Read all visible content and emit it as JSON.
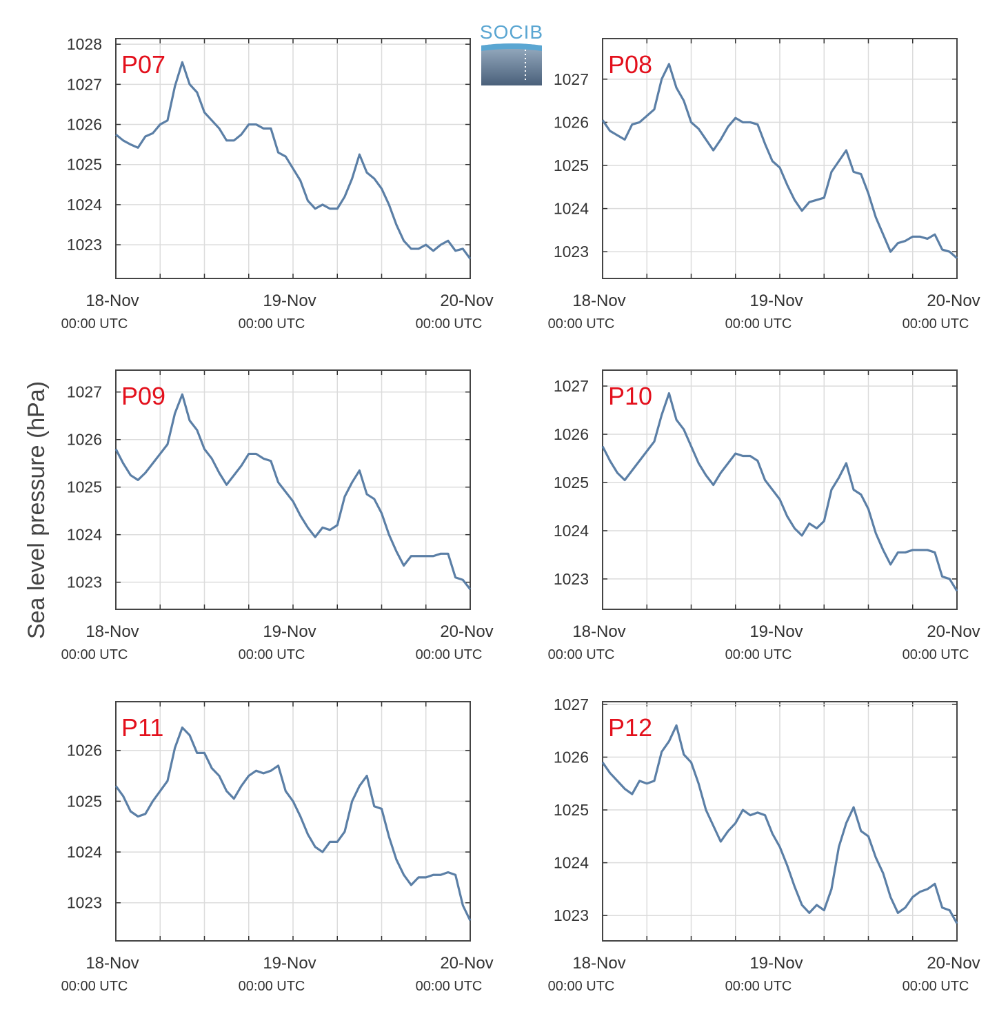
{
  "figure": {
    "ylabel": "Sea level pressure (hPa)",
    "logo": "SOCIB"
  },
  "chart_data": [
    {
      "type": "line",
      "title": "P07",
      "x": [
        0,
        1,
        2,
        3,
        4,
        5,
        6,
        7,
        8,
        9,
        10,
        11,
        12,
        13,
        14,
        15,
        16,
        17,
        18,
        19,
        20,
        21,
        22,
        23,
        24,
        25,
        26,
        27,
        28,
        29,
        30,
        31,
        32,
        33,
        34,
        35,
        36,
        37,
        38,
        39,
        40,
        41,
        42,
        43,
        44,
        45,
        46,
        47,
        48
      ],
      "series": [
        {
          "color": "#5b7fa6",
          "values": [
            1025.75,
            1025.6,
            1025.5,
            1025.42,
            1025.7,
            1025.78,
            1026.0,
            1026.1,
            1026.95,
            1027.55,
            1027.0,
            1026.8,
            1026.3,
            1026.1,
            1025.9,
            1025.6,
            1025.6,
            1025.75,
            1026.0,
            1026.0,
            1025.9,
            1025.9,
            1025.3,
            1025.2,
            1024.9,
            1024.6,
            1024.1,
            1023.9,
            1024.0,
            1023.9,
            1023.9,
            1024.2,
            1024.65,
            1025.25,
            1024.8,
            1024.65,
            1024.4,
            1024.0,
            1023.5,
            1023.1,
            1022.9,
            1022.9,
            1023.0,
            1022.85,
            1023.0,
            1023.1,
            1022.85,
            1022.9,
            1022.65
          ]
        }
      ],
      "xlim": [
        0,
        48
      ],
      "xticks": [
        {
          "value": 0,
          "label": "18-Nov",
          "sublabel": "00:00 UTC"
        },
        {
          "value": 24,
          "label": "19-Nov",
          "sublabel": "00:00 UTC"
        },
        {
          "value": 48,
          "label": "20-Nov",
          "sublabel": "00:00 UTC"
        }
      ],
      "xminor": [
        6,
        12,
        18,
        30,
        36,
        42
      ],
      "ylim": [
        1022.16,
        1028.14
      ],
      "yticks": [
        1023,
        1024,
        1025,
        1026,
        1027,
        1028
      ],
      "grid": true
    },
    {
      "type": "line",
      "title": "P08",
      "x": [
        0,
        1,
        2,
        3,
        4,
        5,
        6,
        7,
        8,
        9,
        10,
        11,
        12,
        13,
        14,
        15,
        16,
        17,
        18,
        19,
        20,
        21,
        22,
        23,
        24,
        25,
        26,
        27,
        28,
        29,
        30,
        31,
        32,
        33,
        34,
        35,
        36,
        37,
        38,
        39,
        40,
        41,
        42,
        43,
        44,
        45,
        46,
        47,
        48
      ],
      "series": [
        {
          "color": "#5b7fa6",
          "values": [
            1026.05,
            1025.8,
            1025.7,
            1025.6,
            1025.95,
            1026.0,
            1026.15,
            1026.3,
            1027.0,
            1027.35,
            1026.8,
            1026.5,
            1026.0,
            1025.85,
            1025.6,
            1025.35,
            1025.6,
            1025.9,
            1026.1,
            1026.0,
            1026.0,
            1025.95,
            1025.5,
            1025.1,
            1024.95,
            1024.55,
            1024.2,
            1023.95,
            1024.15,
            1024.2,
            1024.25,
            1024.85,
            1025.1,
            1025.35,
            1024.85,
            1024.8,
            1024.35,
            1023.8,
            1023.4,
            1023.0,
            1023.2,
            1023.25,
            1023.35,
            1023.35,
            1023.3,
            1023.4,
            1023.05,
            1023.0,
            1022.85
          ]
        }
      ],
      "xlim": [
        0,
        48
      ],
      "xticks": [
        {
          "value": 0,
          "label": "18-Nov",
          "sublabel": "00:00 UTC"
        },
        {
          "value": 24,
          "label": "19-Nov",
          "sublabel": "00:00 UTC"
        },
        {
          "value": 48,
          "label": "20-Nov",
          "sublabel": "00:00 UTC"
        }
      ],
      "xminor": [
        6,
        12,
        18,
        30,
        36,
        42
      ],
      "ylim": [
        1022.38,
        1027.94
      ],
      "yticks": [
        1023,
        1024,
        1025,
        1026,
        1027
      ],
      "grid": true
    },
    {
      "type": "line",
      "title": "P09",
      "x": [
        0,
        1,
        2,
        3,
        4,
        5,
        6,
        7,
        8,
        9,
        10,
        11,
        12,
        13,
        14,
        15,
        16,
        17,
        18,
        19,
        20,
        21,
        22,
        23,
        24,
        25,
        26,
        27,
        28,
        29,
        30,
        31,
        32,
        33,
        34,
        35,
        36,
        37,
        38,
        39,
        40,
        41,
        42,
        43,
        44,
        45,
        46,
        47,
        48
      ],
      "series": [
        {
          "color": "#5b7fa6",
          "values": [
            1025.8,
            1025.5,
            1025.25,
            1025.15,
            1025.3,
            1025.5,
            1025.7,
            1025.9,
            1026.55,
            1026.95,
            1026.4,
            1026.2,
            1025.8,
            1025.6,
            1025.3,
            1025.05,
            1025.25,
            1025.45,
            1025.7,
            1025.7,
            1025.6,
            1025.55,
            1025.1,
            1024.9,
            1024.7,
            1024.4,
            1024.15,
            1023.95,
            1024.15,
            1024.1,
            1024.2,
            1024.8,
            1025.1,
            1025.35,
            1024.85,
            1024.75,
            1024.45,
            1024.0,
            1023.65,
            1023.35,
            1023.55,
            1023.55,
            1023.55,
            1023.55,
            1023.6,
            1023.6,
            1023.1,
            1023.05,
            1022.85
          ]
        }
      ],
      "xlim": [
        0,
        48
      ],
      "xticks": [
        {
          "value": 0,
          "label": "18-Nov",
          "sublabel": "00:00 UTC"
        },
        {
          "value": 24,
          "label": "19-Nov",
          "sublabel": "00:00 UTC"
        },
        {
          "value": 48,
          "label": "20-Nov",
          "sublabel": "00:00 UTC"
        }
      ],
      "xminor": [
        6,
        12,
        18,
        30,
        36,
        42
      ],
      "ylim": [
        1022.43,
        1027.46
      ],
      "yticks": [
        1023,
        1024,
        1025,
        1026,
        1027
      ],
      "grid": true
    },
    {
      "type": "line",
      "title": "P10",
      "x": [
        0,
        1,
        2,
        3,
        4,
        5,
        6,
        7,
        8,
        9,
        10,
        11,
        12,
        13,
        14,
        15,
        16,
        17,
        18,
        19,
        20,
        21,
        22,
        23,
        24,
        25,
        26,
        27,
        28,
        29,
        30,
        31,
        32,
        33,
        34,
        35,
        36,
        37,
        38,
        39,
        40,
        41,
        42,
        43,
        44,
        45,
        46,
        47,
        48
      ],
      "series": [
        {
          "color": "#5b7fa6",
          "values": [
            1025.75,
            1025.45,
            1025.2,
            1025.05,
            1025.25,
            1025.45,
            1025.65,
            1025.85,
            1026.4,
            1026.85,
            1026.3,
            1026.1,
            1025.75,
            1025.4,
            1025.15,
            1024.95,
            1025.2,
            1025.4,
            1025.6,
            1025.55,
            1025.55,
            1025.45,
            1025.05,
            1024.85,
            1024.65,
            1024.3,
            1024.05,
            1023.9,
            1024.15,
            1024.05,
            1024.2,
            1024.85,
            1025.1,
            1025.4,
            1024.85,
            1024.75,
            1024.45,
            1023.95,
            1023.6,
            1023.3,
            1023.55,
            1023.55,
            1023.6,
            1023.6,
            1023.6,
            1023.55,
            1023.05,
            1023.0,
            1022.75
          ]
        }
      ],
      "xlim": [
        0,
        48
      ],
      "xticks": [
        {
          "value": 0,
          "label": "18-Nov",
          "sublabel": "00:00 UTC"
        },
        {
          "value": 24,
          "label": "19-Nov",
          "sublabel": "00:00 UTC"
        },
        {
          "value": 48,
          "label": "20-Nov",
          "sublabel": "00:00 UTC"
        }
      ],
      "xminor": [
        6,
        12,
        18,
        30,
        36,
        42
      ],
      "ylim": [
        1022.37,
        1027.33
      ],
      "yticks": [
        1023,
        1024,
        1025,
        1026,
        1027
      ],
      "grid": true
    },
    {
      "type": "line",
      "title": "P11",
      "x": [
        0,
        1,
        2,
        3,
        4,
        5,
        6,
        7,
        8,
        9,
        10,
        11,
        12,
        13,
        14,
        15,
        16,
        17,
        18,
        19,
        20,
        21,
        22,
        23,
        24,
        25,
        26,
        27,
        28,
        29,
        30,
        31,
        32,
        33,
        34,
        35,
        36,
        37,
        38,
        39,
        40,
        41,
        42,
        43,
        44,
        45,
        46,
        47,
        48
      ],
      "series": [
        {
          "color": "#5b7fa6",
          "values": [
            1025.3,
            1025.1,
            1024.8,
            1024.7,
            1024.75,
            1025.0,
            1025.2,
            1025.4,
            1026.05,
            1026.45,
            1026.3,
            1025.95,
            1025.95,
            1025.65,
            1025.5,
            1025.2,
            1025.05,
            1025.3,
            1025.5,
            1025.6,
            1025.55,
            1025.6,
            1025.7,
            1025.2,
            1025.0,
            1024.7,
            1024.35,
            1024.1,
            1024.0,
            1024.2,
            1024.2,
            1024.4,
            1025.0,
            1025.3,
            1025.5,
            1024.9,
            1024.85,
            1024.3,
            1023.85,
            1023.55,
            1023.35,
            1023.5,
            1023.5,
            1023.55,
            1023.55,
            1023.6,
            1023.55,
            1022.95,
            1022.65
          ]
        }
      ],
      "xlim": [
        0,
        48
      ],
      "xticks": [
        {
          "value": 0,
          "label": "18-Nov",
          "sublabel": "00:00 UTC"
        },
        {
          "value": 24,
          "label": "19-Nov",
          "sublabel": "00:00 UTC"
        },
        {
          "value": 48,
          "label": "20-Nov",
          "sublabel": "00:00 UTC"
        }
      ],
      "xminor": [
        6,
        12,
        18,
        30,
        36,
        42
      ],
      "ylim": [
        1022.25,
        1026.96
      ],
      "yticks": [
        1023,
        1024,
        1025,
        1026
      ],
      "grid": true
    },
    {
      "type": "line",
      "title": "P12",
      "x": [
        0,
        1,
        2,
        3,
        4,
        5,
        6,
        7,
        8,
        9,
        10,
        11,
        12,
        13,
        14,
        15,
        16,
        17,
        18,
        19,
        20,
        21,
        22,
        23,
        24,
        25,
        26,
        27,
        28,
        29,
        30,
        31,
        32,
        33,
        34,
        35,
        36,
        37,
        38,
        39,
        40,
        41,
        42,
        43,
        44,
        45,
        46,
        47,
        48
      ],
      "series": [
        {
          "color": "#5b7fa6",
          "values": [
            1025.9,
            1025.7,
            1025.55,
            1025.4,
            1025.3,
            1025.55,
            1025.5,
            1025.55,
            1026.1,
            1026.3,
            1026.6,
            1026.05,
            1025.9,
            1025.5,
            1025.0,
            1024.7,
            1024.4,
            1024.6,
            1024.75,
            1025.0,
            1024.9,
            1024.95,
            1024.9,
            1024.55,
            1024.3,
            1023.95,
            1023.55,
            1023.2,
            1023.05,
            1023.2,
            1023.1,
            1023.5,
            1024.3,
            1024.75,
            1025.05,
            1024.6,
            1024.5,
            1024.1,
            1023.8,
            1023.35,
            1023.05,
            1023.15,
            1023.35,
            1023.45,
            1023.5,
            1023.6,
            1023.15,
            1023.1,
            1022.85
          ]
        }
      ],
      "xlim": [
        0,
        48
      ],
      "xticks": [
        {
          "value": 0,
          "label": "18-Nov",
          "sublabel": "00:00 UTC"
        },
        {
          "value": 24,
          "label": "19-Nov",
          "sublabel": "00:00 UTC"
        },
        {
          "value": 48,
          "label": "20-Nov",
          "sublabel": "00:00 UTC"
        }
      ],
      "xminor": [
        6,
        12,
        18,
        30,
        36,
        42
      ],
      "ylim": [
        1022.52,
        1027.05
      ],
      "yticks": [
        1023,
        1024,
        1025,
        1026,
        1027
      ],
      "grid": true
    }
  ]
}
